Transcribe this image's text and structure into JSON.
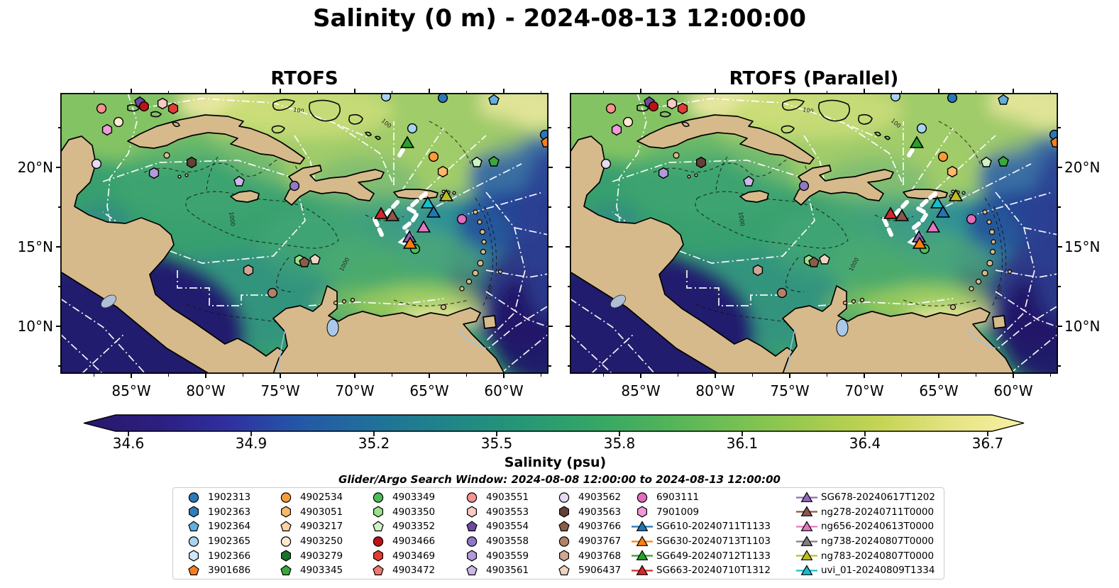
{
  "title": "Salinity (0 m) - 2024-08-13 12:00:00",
  "subtitle": "Glider/Argo Search Window: 2024-08-08 12:00:00 to 2024-08-13 12:00:00",
  "panels": [
    {
      "title": "RTOFS"
    },
    {
      "title": "RTOFS (Parallel)"
    }
  ],
  "axes": {
    "x_ticks": [
      "85°W",
      "80°W",
      "75°W",
      "70°W",
      "65°W",
      "60°W"
    ],
    "y_ticks": [
      "20°N",
      "15°N",
      "10°N"
    ]
  },
  "colorbar": {
    "label": "Salinity (psu)",
    "ticks": [
      "34.6",
      "34.9",
      "35.2",
      "35.5",
      "35.8",
      "36.1",
      "36.4",
      "36.7"
    ],
    "gradient": [
      "#2a186c",
      "#2b1e7e",
      "#30309f",
      "#2458a7",
      "#20709a",
      "#208488",
      "#259677",
      "#33a566",
      "#4eb35a",
      "#74c052",
      "#9dca4e",
      "#c5d454",
      "#e5e383",
      "#f8f2a6"
    ]
  },
  "legend": {
    "columns": [
      [
        {
          "label": "1902313",
          "shape": "circle",
          "color": "#2979b9"
        },
        {
          "label": "1902363",
          "shape": "hexagon",
          "color": "#2d7fbe"
        },
        {
          "label": "1902364",
          "shape": "pentagon",
          "color": "#63aeda"
        },
        {
          "label": "1902365",
          "shape": "circle",
          "color": "#a6d3ef"
        },
        {
          "label": "1902366",
          "shape": "hexagon",
          "color": "#cfe7f7"
        },
        {
          "label": "3901686",
          "shape": "pentagon",
          "color": "#f57e20"
        }
      ],
      [
        {
          "label": "4902534",
          "shape": "circle",
          "color": "#f99c38"
        },
        {
          "label": "4903051",
          "shape": "hexagon",
          "color": "#fcb96b"
        },
        {
          "label": "4903217",
          "shape": "pentagon",
          "color": "#fdd2a0"
        },
        {
          "label": "4903250",
          "shape": "circle",
          "color": "#fde9cf"
        },
        {
          "label": "4903279",
          "shape": "hexagon",
          "color": "#19742f"
        },
        {
          "label": "4903345",
          "shape": "pentagon",
          "color": "#39a83b"
        }
      ],
      [
        {
          "label": "4903349",
          "shape": "circle",
          "color": "#4cbd55"
        },
        {
          "label": "4903350",
          "shape": "hexagon",
          "color": "#9ce08d"
        },
        {
          "label": "4903352",
          "shape": "pentagon",
          "color": "#cef2c4"
        },
        {
          "label": "4903466",
          "shape": "circle",
          "color": "#bd1316"
        },
        {
          "label": "4903469",
          "shape": "hexagon",
          "color": "#e23d34"
        },
        {
          "label": "4903472",
          "shape": "pentagon",
          "color": "#ef7a70"
        }
      ],
      [
        {
          "label": "4903551",
          "shape": "circle",
          "color": "#f8938f"
        },
        {
          "label": "4903553",
          "shape": "hexagon",
          "color": "#fbc9c5"
        },
        {
          "label": "4903554",
          "shape": "pentagon",
          "color": "#6d4aa1"
        },
        {
          "label": "4903558",
          "shape": "circle",
          "color": "#9177c6"
        },
        {
          "label": "4903559",
          "shape": "hexagon",
          "color": "#b29add"
        },
        {
          "label": "4903561",
          "shape": "pentagon",
          "color": "#cbb7e8"
        }
      ],
      [
        {
          "label": "4903562",
          "shape": "circle",
          "color": "#e6daf4"
        },
        {
          "label": "4903563",
          "shape": "hexagon",
          "color": "#654036"
        },
        {
          "label": "4903766",
          "shape": "pentagon",
          "color": "#8a5d49"
        },
        {
          "label": "4903767",
          "shape": "circle",
          "color": "#b28268"
        },
        {
          "label": "4903768",
          "shape": "hexagon",
          "color": "#d0a794"
        },
        {
          "label": "5906437",
          "shape": "pentagon",
          "color": "#eed3c0"
        }
      ],
      [
        {
          "label": "6903111",
          "shape": "circle",
          "color": "#e16cc0"
        },
        {
          "label": "7901009",
          "shape": "hexagon",
          "color": "#f09ad8"
        },
        {
          "label": "SG610-20240711T1133",
          "shape": "glider",
          "color": "#1f77b4"
        },
        {
          "label": "SG630-20240713T1103",
          "shape": "glider",
          "color": "#ff7f0e"
        },
        {
          "label": "SG649-20240712T1133",
          "shape": "glider",
          "color": "#2ca02c"
        },
        {
          "label": "SG663-20240710T1312",
          "shape": "glider",
          "color": "#d62728"
        }
      ],
      [
        {
          "label": "SG678-20240617T1202",
          "shape": "glider",
          "color": "#9467bd"
        },
        {
          "label": "ng278-20240711T0000",
          "shape": "glider",
          "color": "#8c564b"
        },
        {
          "label": "ng656-20240613T0000",
          "shape": "glider",
          "color": "#e377c2"
        },
        {
          "label": "ng738-20240807T0000",
          "shape": "glider",
          "color": "#7f7f7f"
        },
        {
          "label": "ng783-20240807T0000",
          "shape": "glider",
          "color": "#bcbd22"
        },
        {
          "label": "uvi_01-20240809T1334",
          "shape": "glider",
          "color": "#17becf"
        }
      ]
    ]
  },
  "map": {
    "land_color": "#d7ba8b",
    "contour_labels": [
      "1000",
      "100"
    ],
    "markers": [
      {
        "x": 58,
        "y": 22,
        "shape": "circle",
        "color": "#f8938f",
        "name": "4903551"
      },
      {
        "x": 112,
        "y": 13,
        "shape": "pentagon",
        "color": "#6d4aa1",
        "name": "4903554"
      },
      {
        "x": 118,
        "y": 19,
        "shape": "circle",
        "color": "#bd1316",
        "name": "4903466"
      },
      {
        "x": 144,
        "y": 15,
        "shape": "hexagon",
        "color": "#fbc9c5",
        "name": "4903553"
      },
      {
        "x": 159,
        "y": 22,
        "shape": "hexagon",
        "color": "#e23d34",
        "name": "4903469"
      },
      {
        "x": 82,
        "y": 41,
        "shape": "circle",
        "color": "#fde9cf",
        "name": "4903250"
      },
      {
        "x": 66,
        "y": 52,
        "shape": "hexagon",
        "color": "#f09ad8",
        "name": "7901009"
      },
      {
        "x": 51,
        "y": 100,
        "shape": "circle",
        "color": "#e6daf4",
        "name": "4903562"
      },
      {
        "x": 132,
        "y": 113,
        "shape": "hexagon",
        "color": "#b29add",
        "name": "4903559"
      },
      {
        "x": 185,
        "y": 98,
        "shape": "hexagon",
        "color": "#654036",
        "name": "4903563"
      },
      {
        "x": 252,
        "y": 125,
        "shape": "pentagon",
        "color": "#cbb7e8",
        "name": "4903561"
      },
      {
        "x": 330,
        "y": 131,
        "shape": "circle",
        "color": "#9177c6",
        "name": "4903558"
      },
      {
        "x": 459,
        "y": 5,
        "shape": "circle",
        "color": "#a6d3ef",
        "name": "1902365"
      },
      {
        "x": 539,
        "y": 7,
        "shape": "circle",
        "color": "#2979b9",
        "name": "1902313"
      },
      {
        "x": 611,
        "y": 10,
        "shape": "pentagon",
        "color": "#63aeda",
        "name": "1902364"
      },
      {
        "x": 496,
        "y": 50,
        "shape": "circle",
        "color": "#a6d3ef",
        "name": "1902365"
      },
      {
        "x": 526,
        "y": 90,
        "shape": "circle",
        "color": "#f99c38",
        "name": "4902534"
      },
      {
        "x": 539,
        "y": 111,
        "shape": "hexagon",
        "color": "#fcb96b",
        "name": "4903051"
      },
      {
        "x": 587,
        "y": 98,
        "shape": "pentagon",
        "color": "#cef2c4",
        "name": "4903352"
      },
      {
        "x": 611,
        "y": 97,
        "shape": "pentagon",
        "color": "#39a83b",
        "name": "4903345"
      },
      {
        "x": 566,
        "y": 178,
        "shape": "circle",
        "color": "#e16cc0",
        "name": "6903111"
      },
      {
        "x": 683,
        "y": 59,
        "shape": "circle",
        "color": "#2979b9",
        "name": "1902313"
      },
      {
        "x": 685,
        "y": 70,
        "shape": "pentagon",
        "color": "#f57e20",
        "name": "3901686"
      },
      {
        "x": 265,
        "y": 250,
        "shape": "hexagon",
        "color": "#d0a794",
        "name": "4903768"
      },
      {
        "x": 299,
        "y": 282,
        "shape": "circle",
        "color": "#b28268",
        "name": "4903767"
      },
      {
        "x": 337,
        "y": 236,
        "shape": "hexagon",
        "color": "#9ce08d",
        "name": "4903350"
      },
      {
        "x": 344,
        "y": 239,
        "shape": "pentagon",
        "color": "#8a5d49",
        "name": "4903766"
      },
      {
        "x": 359,
        "y": 235,
        "shape": "pentagon",
        "color": "#eed3c0",
        "name": "5906437"
      },
      {
        "x": 500,
        "y": 220,
        "shape": "circle",
        "color": "#4cbd55",
        "name": "4903349"
      },
      {
        "x": 489,
        "y": 72,
        "shape": "triangle",
        "color": "#2ca02c",
        "name": "SG649-20240712T1133"
      },
      {
        "x": 452,
        "y": 172,
        "shape": "triangle",
        "color": "#d62728",
        "name": "SG663-20240710T1312"
      },
      {
        "x": 468,
        "y": 175,
        "shape": "triangle",
        "color": "#8c564b",
        "name": "ng278-20240711T0000"
      },
      {
        "x": 518,
        "y": 157,
        "shape": "triangle",
        "color": "#17becf",
        "name": "uvi_01-20240809T1334"
      },
      {
        "x": 544,
        "y": 147,
        "shape": "triangle",
        "color": "#bcbd22",
        "name": "ng783-20240807T0000"
      },
      {
        "x": 526,
        "y": 170,
        "shape": "triangle",
        "color": "#1f77b4",
        "name": "SG610-20240711T1133"
      },
      {
        "x": 512,
        "y": 191,
        "shape": "triangle",
        "color": "#e377c2",
        "name": "ng656-20240613T0000"
      },
      {
        "x": 492,
        "y": 205,
        "shape": "triangle",
        "color": "#9467bd",
        "name": "SG678-20240617T1202"
      },
      {
        "x": 493,
        "y": 214,
        "shape": "triangle",
        "color": "#ff7f0e",
        "name": "SG630-20240713T1103"
      }
    ],
    "tracks": [
      [
        [
          515,
          142
        ],
        [
          504,
          151
        ],
        [
          491,
          163
        ],
        [
          503,
          170
        ],
        [
          496,
          181
        ],
        [
          485,
          190
        ],
        [
          493,
          200
        ],
        [
          481,
          210
        ],
        [
          497,
          217
        ]
      ],
      [
        [
          458,
          172
        ],
        [
          476,
          153
        ]
      ],
      [
        [
          443,
          178
        ],
        [
          453,
          200
        ]
      ],
      [
        [
          478,
          88
        ],
        [
          488,
          72
        ]
      ]
    ]
  }
}
